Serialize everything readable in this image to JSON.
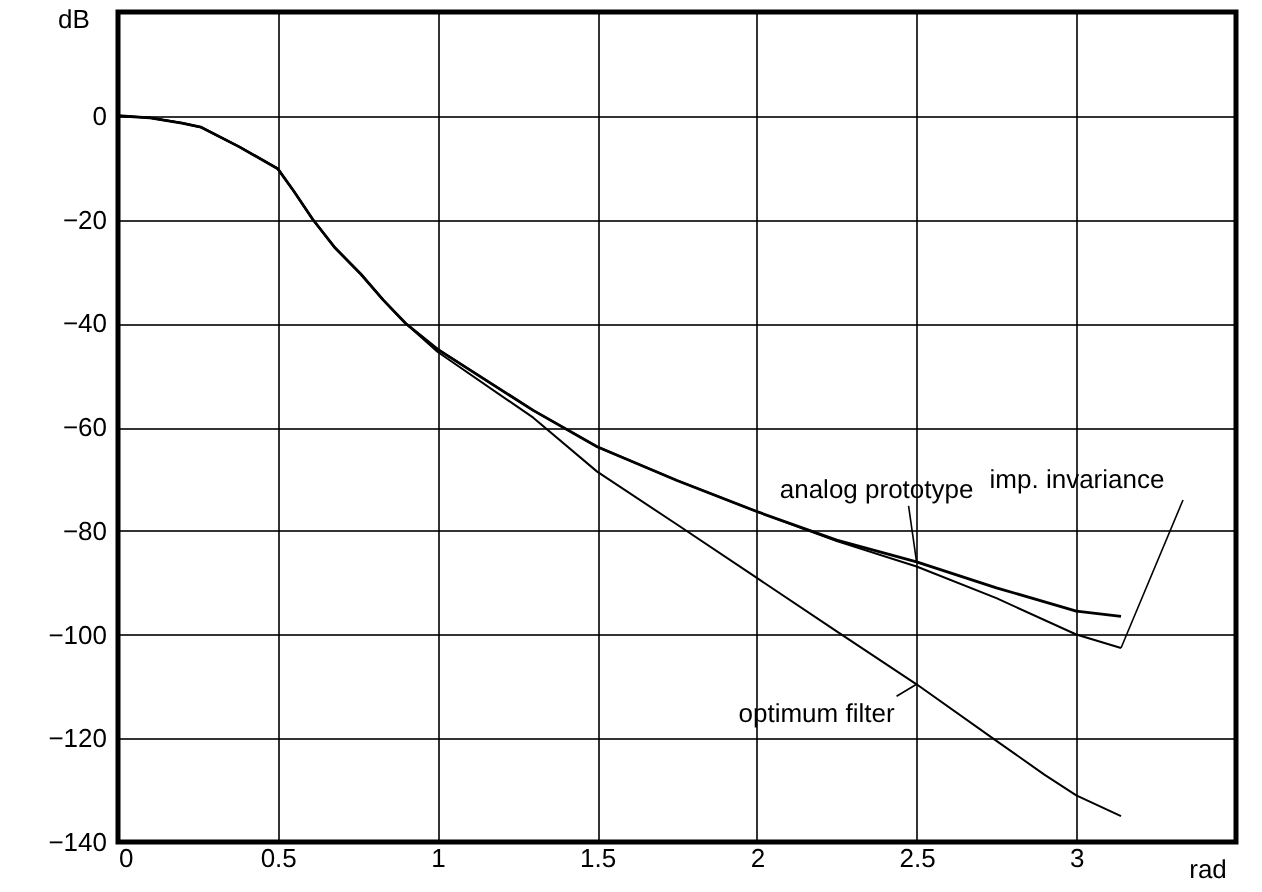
{
  "chart_data": {
    "type": "line",
    "xlabel": "rad",
    "ylabel": "dB",
    "xlim": [
      0,
      3.5
    ],
    "ylim": [
      -140,
      20
    ],
    "xticks": [
      0,
      0.5,
      1,
      1.5,
      2,
      2.5,
      3
    ],
    "yticks": [
      -140,
      -120,
      -100,
      -80,
      -60,
      -40,
      -20,
      0
    ],
    "grid": true,
    "marker": "none",
    "line_style": "solid",
    "series": [
      {
        "name": "analog prototype",
        "color": "#000000",
        "x": [
          0,
          0.1,
          0.2,
          0.26,
          0.38,
          0.5,
          0.55,
          0.61,
          0.68,
          0.76,
          0.83,
          0.9,
          1.0,
          1.3,
          1.5,
          1.75,
          2,
          2.25,
          2.5,
          2.75,
          3.0,
          3.14
        ],
        "values": [
          0,
          -0.4,
          -1.4,
          -2.2,
          -6,
          -10.2,
          -14.5,
          -20,
          -25.5,
          -30.5,
          -35.5,
          -40,
          -45,
          -56.8,
          -63.8,
          -70.3,
          -76.3,
          -81.8,
          -86,
          -91,
          -95.5,
          -96.5
        ]
      },
      {
        "name": "imp. invariance",
        "color": "#000000",
        "x": [
          0,
          0.1,
          0.2,
          0.26,
          0.38,
          0.5,
          0.55,
          0.61,
          0.68,
          0.76,
          0.83,
          0.9,
          1.0,
          1.3,
          1.5,
          1.75,
          2,
          2.25,
          2.5,
          2.75,
          3.0,
          3.14
        ],
        "values": [
          0,
          -0.4,
          -1.4,
          -2.2,
          -6,
          -10.2,
          -14.5,
          -20,
          -25.5,
          -30.5,
          -35.5,
          -40,
          -45,
          -56.8,
          -63.8,
          -70.3,
          -76.3,
          -82,
          -86.9,
          -93,
          -100,
          -102.6
        ]
      },
      {
        "name": "optimum filter",
        "color": "#000000",
        "x": [
          0,
          0.1,
          0.2,
          0.26,
          0.38,
          0.5,
          0.55,
          0.61,
          0.68,
          0.76,
          0.83,
          0.9,
          1.0,
          1.3,
          1.5,
          1.75,
          2,
          2.25,
          2.5,
          2.75,
          2.9,
          3.0,
          3.14
        ],
        "values": [
          0,
          -0.4,
          -1.4,
          -2.2,
          -6,
          -10.2,
          -14.5,
          -20,
          -25.5,
          -30.5,
          -35.5,
          -40,
          -45.5,
          -58.2,
          -68.6,
          -78.8,
          -89.1,
          -99.4,
          -109.6,
          -120.5,
          -127,
          -131,
          -135
        ]
      }
    ]
  }
}
